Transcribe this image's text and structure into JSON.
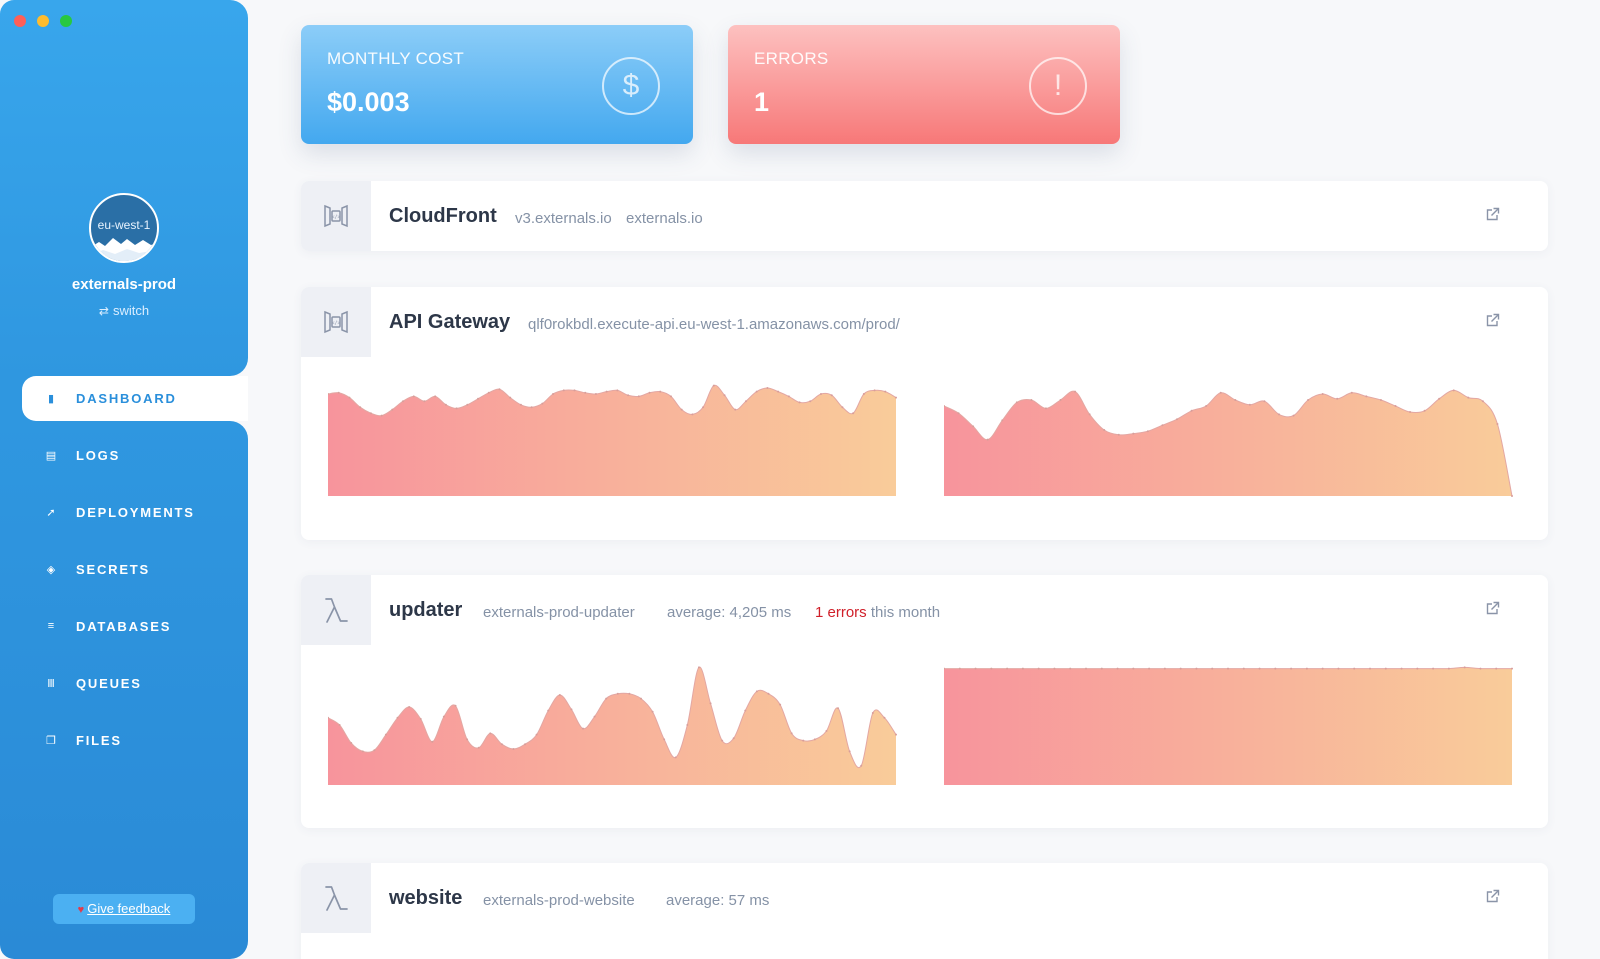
{
  "window": {
    "controls": [
      "close",
      "minimize",
      "zoom"
    ]
  },
  "sidebar": {
    "region": "eu-west-1",
    "account": "externals-prod",
    "switch_label": "switch",
    "nav": [
      {
        "label": "DASHBOARD",
        "icon": "bar-chart-icon",
        "active": true
      },
      {
        "label": "LOGS",
        "icon": "file-icon",
        "active": false
      },
      {
        "label": "DEPLOYMENTS",
        "icon": "rocket-icon",
        "active": false
      },
      {
        "label": "SECRETS",
        "icon": "shield-icon",
        "active": false
      },
      {
        "label": "DATABASES",
        "icon": "database-icon",
        "active": false
      },
      {
        "label": "QUEUES",
        "icon": "queue-icon",
        "active": false
      },
      {
        "label": "FILES",
        "icon": "files-icon",
        "active": false
      }
    ],
    "feedback_label": "Give feedback"
  },
  "kpis": {
    "cost": {
      "title": "MONTHLY COST",
      "value": "$0.003",
      "icon": "dollar-icon"
    },
    "errors": {
      "title": "ERRORS",
      "value": "1",
      "icon": "alert-icon"
    }
  },
  "services": {
    "cloudfront": {
      "title": "CloudFront",
      "domain1": "v3.externals.io",
      "domain2": "externals.io",
      "icon": "cloudfront-icon"
    },
    "apigateway": {
      "title": "API Gateway",
      "url": "qlf0rokbdl.execute-api.eu-west-1.amazonaws.com/prod/",
      "icon": "api-gateway-icon"
    },
    "updater": {
      "title": "updater",
      "function": "externals-prod-updater",
      "average": "average: 4,205 ms",
      "errors": "1 errors",
      "errors_suffix": "this month",
      "icon": "lambda-icon"
    },
    "website": {
      "title": "website",
      "function": "externals-prod-website",
      "average": "average: 57 ms",
      "icon": "lambda-icon"
    }
  },
  "colors": {
    "chart_start": "#f7949c",
    "chart_end": "#f9cc9a",
    "accent": "#2f97e0",
    "error": "#d0202a"
  },
  "chart_data": [
    {
      "type": "area",
      "series": [
        {
          "values": [
            0.85,
            0.86,
            0.82,
            0.74,
            0.69,
            0.67,
            0.72,
            0.79,
            0.83,
            0.79,
            0.83,
            0.76,
            0.73,
            0.76,
            0.81,
            0.86,
            0.89,
            0.82,
            0.76,
            0.74,
            0.77,
            0.85,
            0.88,
            0.88,
            0.86,
            0.85,
            0.87,
            0.88,
            0.84,
            0.83,
            0.86,
            0.87,
            0.83,
            0.72,
            0.68,
            0.74,
            0.92,
            0.84,
            0.72,
            0.79,
            0.87,
            0.9,
            0.87,
            0.83,
            0.78,
            0.79,
            0.85,
            0.84,
            0.74,
            0.69,
            0.85,
            0.88,
            0.87,
            0.82
          ]
        }
      ]
    },
    {
      "type": "area",
      "series": [
        {
          "values": [
            0.75,
            0.69,
            0.58,
            0.47,
            0.63,
            0.78,
            0.8,
            0.73,
            0.8,
            0.87,
            0.68,
            0.55,
            0.51,
            0.52,
            0.54,
            0.59,
            0.64,
            0.71,
            0.75,
            0.86,
            0.8,
            0.76,
            0.79,
            0.68,
            0.67,
            0.8,
            0.85,
            0.81,
            0.86,
            0.83,
            0.8,
            0.75,
            0.7,
            0.71,
            0.81,
            0.88,
            0.82,
            0.79,
            0.6,
            0.0
          ]
        }
      ]
    },
    {
      "type": "area",
      "series": [
        {
          "values": [
            0.56,
            0.5,
            0.35,
            0.28,
            0.29,
            0.42,
            0.56,
            0.65,
            0.55,
            0.36,
            0.57,
            0.66,
            0.38,
            0.31,
            0.43,
            0.34,
            0.3,
            0.34,
            0.42,
            0.62,
            0.75,
            0.63,
            0.47,
            0.57,
            0.72,
            0.76,
            0.76,
            0.72,
            0.61,
            0.38,
            0.23,
            0.5,
            0.98,
            0.68,
            0.37,
            0.39,
            0.62,
            0.78,
            0.76,
            0.67,
            0.43,
            0.37,
            0.38,
            0.45,
            0.64,
            0.28,
            0.16,
            0.6,
            0.56,
            0.42
          ]
        }
      ]
    },
    {
      "type": "area",
      "series": [
        {
          "values": [
            0.97,
            0.97,
            0.97,
            0.97,
            0.97,
            0.97,
            0.97,
            0.97,
            0.97,
            0.97,
            0.97,
            0.97,
            0.97,
            0.97,
            0.97,
            0.97,
            0.97,
            0.97,
            0.97,
            0.97,
            0.97,
            0.97,
            0.97,
            0.97,
            0.97,
            0.97,
            0.97,
            0.97,
            0.97,
            0.97,
            0.97,
            0.97,
            0.97,
            0.98,
            0.97,
            0.97,
            0.97
          ]
        }
      ]
    }
  ]
}
